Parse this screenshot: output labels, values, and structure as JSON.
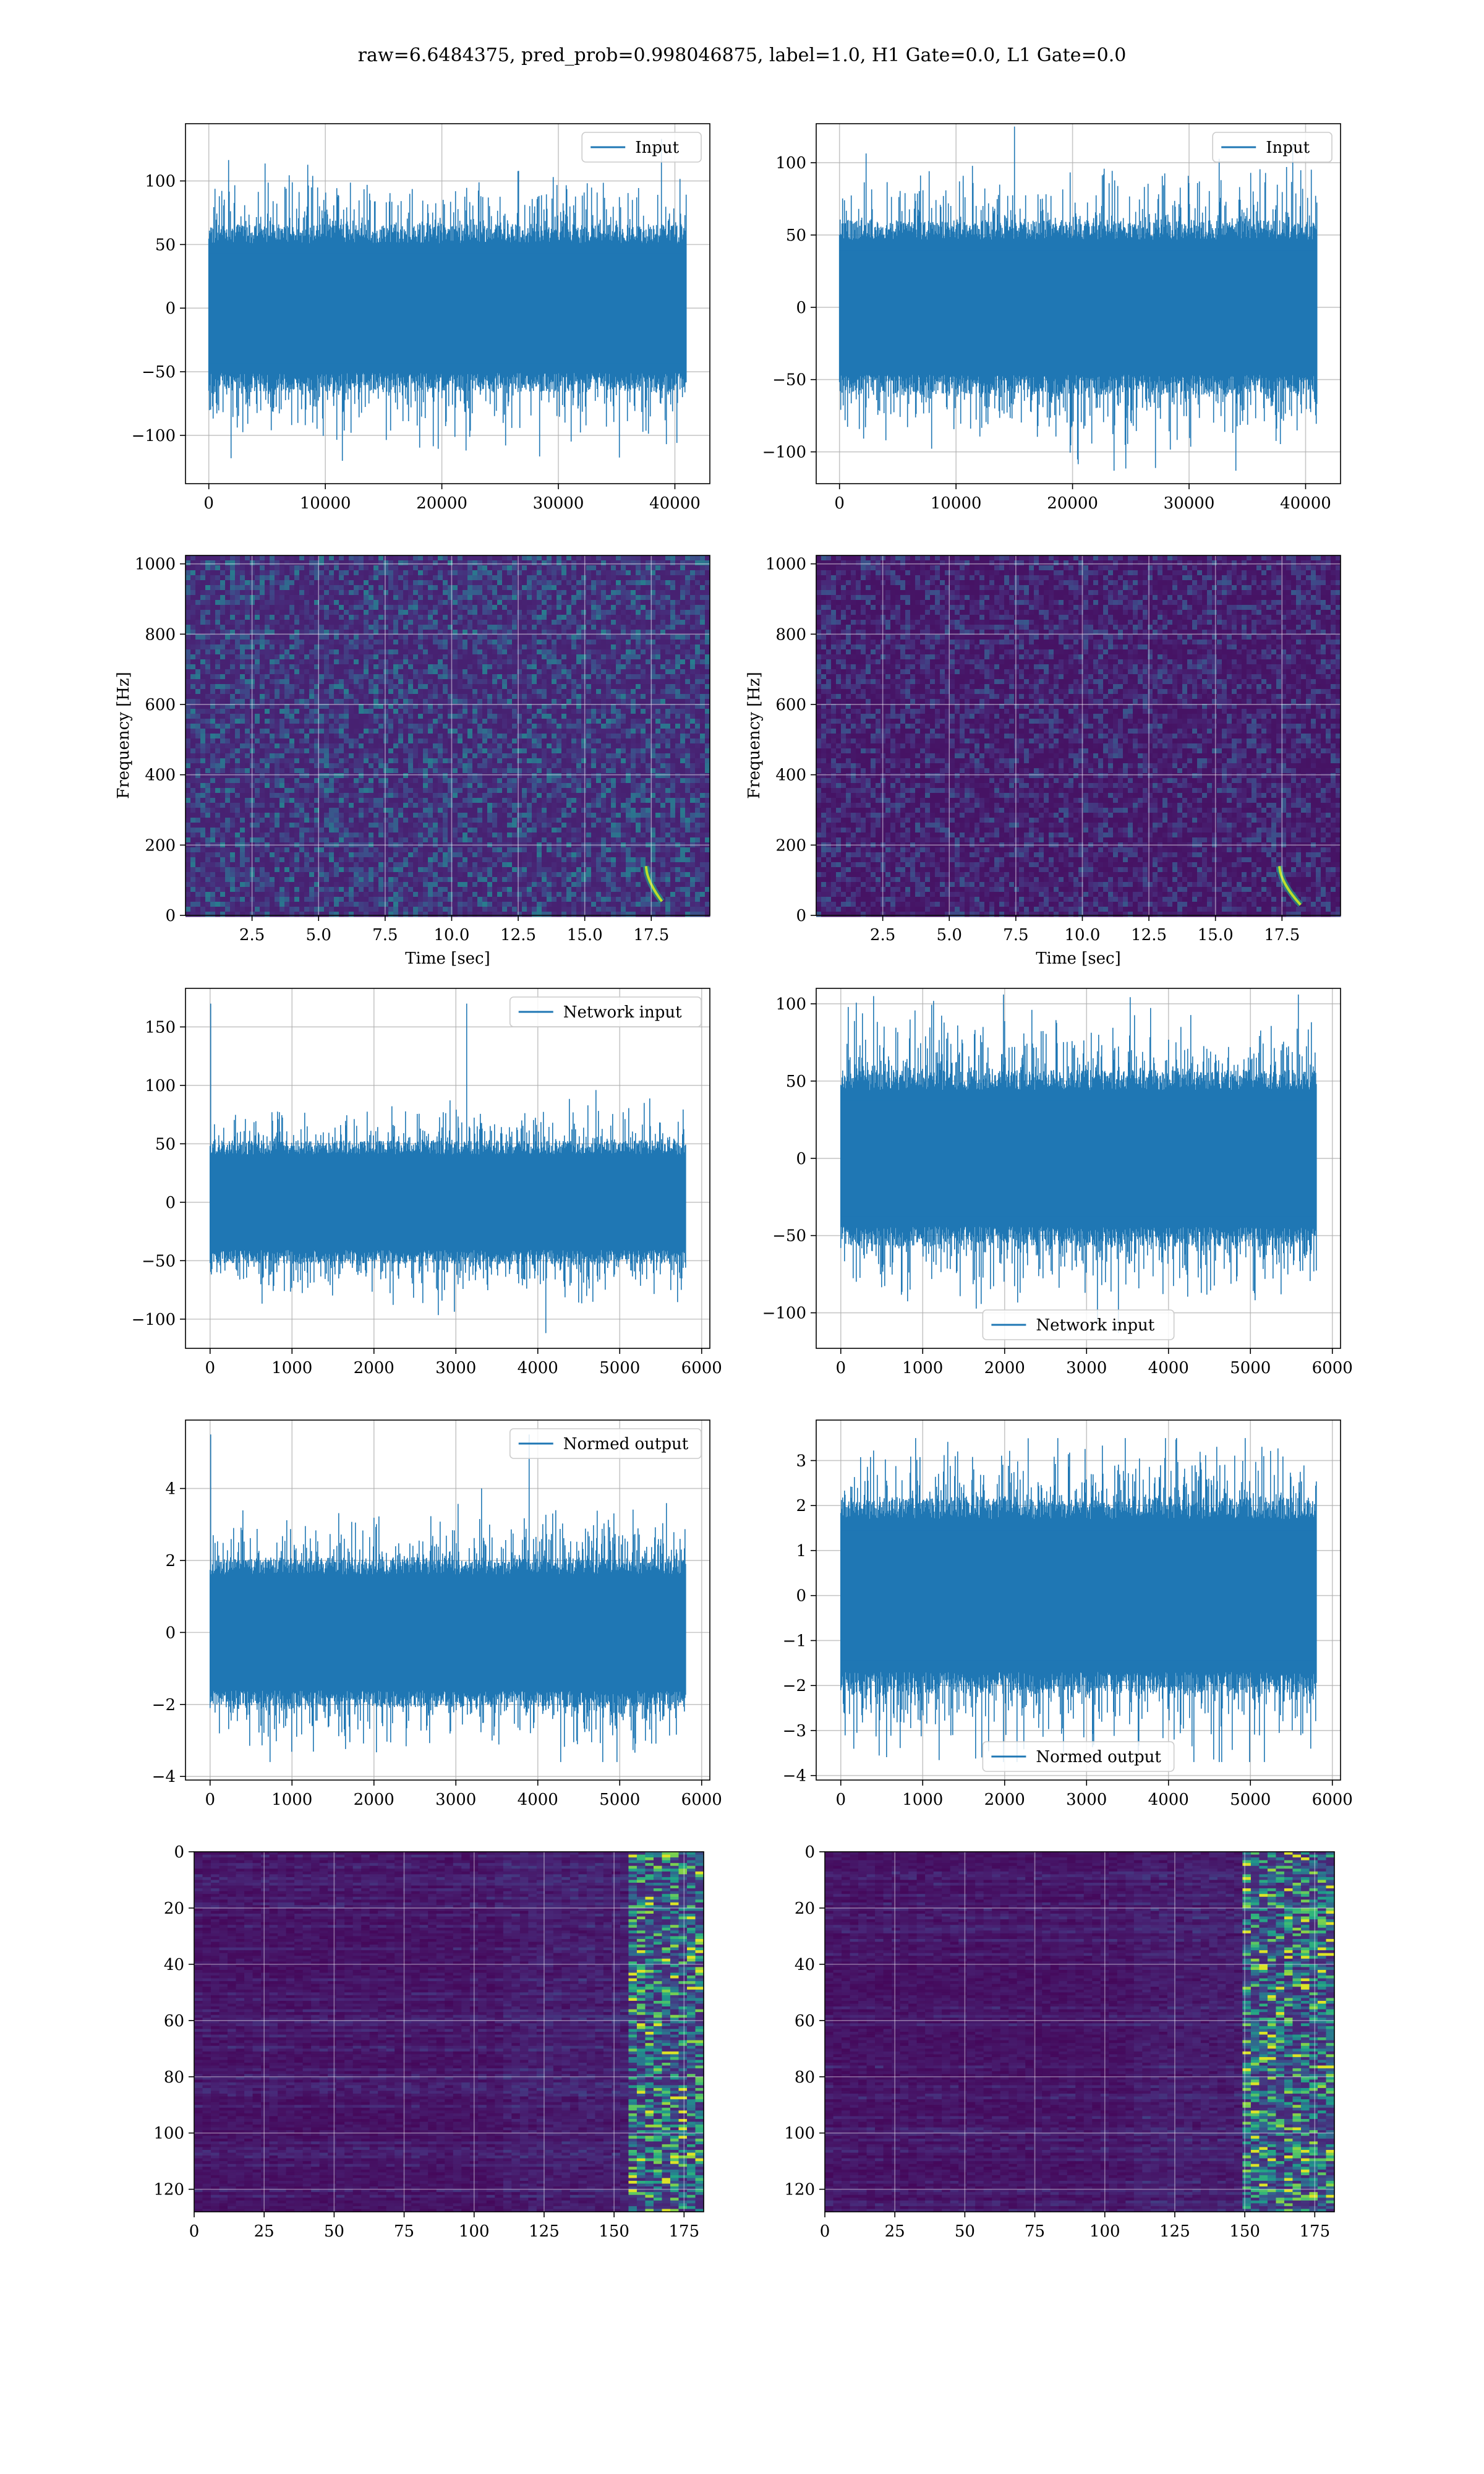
{
  "figure": {
    "suptitle": "raw=6.6484375, pred_prob=0.998046875, label=1.0, H1 Gate=0.0, L1 Gate=0.0"
  },
  "colors": {
    "series": "#1f77b4",
    "grid": "#b0b0b0",
    "viridis_dark": "#440154",
    "viridis_mid": "#3b528b",
    "viridis_teal": "#21918c",
    "viridis_green": "#5ec962",
    "viridis_yellow": "#fde725"
  },
  "chart_data": [
    {
      "id": "h1-input",
      "type": "line",
      "legend": [
        "Input"
      ],
      "legend_loc": "upper right",
      "xlim": [
        -2000,
        43000
      ],
      "ylim": [
        -138,
        145
      ],
      "xticks": [
        0,
        10000,
        20000,
        30000,
        40000
      ],
      "yticks": [
        -100,
        -50,
        0,
        50,
        100
      ],
      "series": [
        {
          "name": "Input",
          "n": 40960,
          "center": 0,
          "envelope": 60,
          "min": -120,
          "max": 133
        }
      ]
    },
    {
      "id": "l1-input",
      "type": "line",
      "legend": [
        "Input"
      ],
      "legend_loc": "upper right",
      "xlim": [
        -2000,
        43000
      ],
      "ylim": [
        -122,
        127
      ],
      "xticks": [
        0,
        10000,
        20000,
        30000,
        40000
      ],
      "yticks": [
        -100,
        -50,
        0,
        50,
        100
      ],
      "series": [
        {
          "name": "Input",
          "n": 40960,
          "center": 0,
          "envelope": 55,
          "min": -113,
          "max": 125
        }
      ]
    },
    {
      "id": "h1-spectrogram",
      "type": "heatmap",
      "colormap": "viridis",
      "xlim": [
        0,
        19.7
      ],
      "ylim": [
        0,
        1024
      ],
      "xticks": [
        2.5,
        5.0,
        7.5,
        10.0,
        12.5,
        15.0,
        17.5
      ],
      "yticks": [
        0,
        200,
        400,
        600,
        800,
        1000
      ],
      "xlabel": "Time [sec]",
      "ylabel": "Frequency [Hz]",
      "chirp": {
        "t_start": 17.3,
        "t_end": 17.9,
        "f_start": 140,
        "f_end": 40
      }
    },
    {
      "id": "l1-spectrogram",
      "type": "heatmap",
      "colormap": "viridis",
      "xlim": [
        0,
        19.7
      ],
      "ylim": [
        0,
        1024
      ],
      "xticks": [
        2.5,
        5.0,
        7.5,
        10.0,
        12.5,
        15.0,
        17.5
      ],
      "yticks": [
        0,
        200,
        400,
        600,
        800,
        1000
      ],
      "xlabel": "Time [sec]",
      "ylabel": "Frequency [Hz]",
      "chirp": {
        "t_start": 17.4,
        "t_end": 18.2,
        "f_start": 140,
        "f_end": 30
      }
    },
    {
      "id": "h1-network-input",
      "type": "line",
      "legend": [
        "Network input"
      ],
      "legend_loc": "upper right",
      "xlim": [
        -300,
        6100
      ],
      "ylim": [
        -125,
        183
      ],
      "xticks": [
        0,
        1000,
        2000,
        3000,
        4000,
        5000,
        6000
      ],
      "yticks": [
        -100,
        -50,
        0,
        50,
        100,
        150
      ],
      "series": [
        {
          "name": "Network input",
          "n": 5800,
          "center": 0,
          "envelope": 48,
          "min": -112,
          "max": 170,
          "spike_at": 0,
          "spike_value": 170
        }
      ]
    },
    {
      "id": "l1-network-input",
      "type": "line",
      "legend": [
        "Network input"
      ],
      "legend_loc": "lower center",
      "xlim": [
        -300,
        6100
      ],
      "ylim": [
        -123,
        110
      ],
      "xticks": [
        0,
        1000,
        2000,
        3000,
        4000,
        5000,
        6000
      ],
      "yticks": [
        -100,
        -50,
        0,
        50,
        100
      ],
      "series": [
        {
          "name": "Network input",
          "n": 5800,
          "center": 0,
          "envelope": 52,
          "min": -113,
          "max": 106
        }
      ]
    },
    {
      "id": "h1-normed-output",
      "type": "line",
      "legend": [
        "Normed output"
      ],
      "legend_loc": "upper right",
      "xlim": [
        -300,
        6100
      ],
      "ylim": [
        -4.1,
        5.9
      ],
      "xticks": [
        0,
        1000,
        2000,
        3000,
        4000,
        5000,
        6000
      ],
      "yticks": [
        -4,
        -2,
        0,
        2,
        4
      ],
      "series": [
        {
          "name": "Normed output",
          "n": 5800,
          "center": 0,
          "envelope": 1.9,
          "min": -3.6,
          "max": 5.5,
          "spike_at": 0,
          "spike_value": 5.5
        }
      ]
    },
    {
      "id": "l1-normed-output",
      "type": "line",
      "legend": [
        "Normed output"
      ],
      "legend_loc": "lower center",
      "xlim": [
        -300,
        6100
      ],
      "ylim": [
        -4.1,
        3.9
      ],
      "xticks": [
        0,
        1000,
        2000,
        3000,
        4000,
        5000,
        6000
      ],
      "yticks": [
        -4,
        -3,
        -2,
        -1,
        0,
        1,
        2,
        3
      ],
      "series": [
        {
          "name": "Normed output",
          "n": 5800,
          "center": 0,
          "envelope": 2.0,
          "min": -3.7,
          "max": 3.5
        }
      ]
    },
    {
      "id": "h1-feature-map",
      "type": "heatmap",
      "colormap": "viridis",
      "xlim": [
        0,
        182
      ],
      "ylim": [
        128,
        0
      ],
      "rows": 128,
      "cols": 182,
      "xticks": [
        0,
        25,
        50,
        75,
        100,
        125,
        150,
        175
      ],
      "yticks": [
        0,
        20,
        40,
        60,
        80,
        100,
        120
      ],
      "hot_cols": [
        155,
        180
      ]
    },
    {
      "id": "l1-feature-map",
      "type": "heatmap",
      "colormap": "viridis",
      "xlim": [
        0,
        182
      ],
      "ylim": [
        128,
        0
      ],
      "rows": 128,
      "cols": 182,
      "xticks": [
        0,
        25,
        50,
        75,
        100,
        125,
        150,
        175
      ],
      "yticks": [
        0,
        20,
        40,
        60,
        80,
        100,
        120
      ],
      "hot_cols": [
        150,
        180
      ]
    }
  ]
}
